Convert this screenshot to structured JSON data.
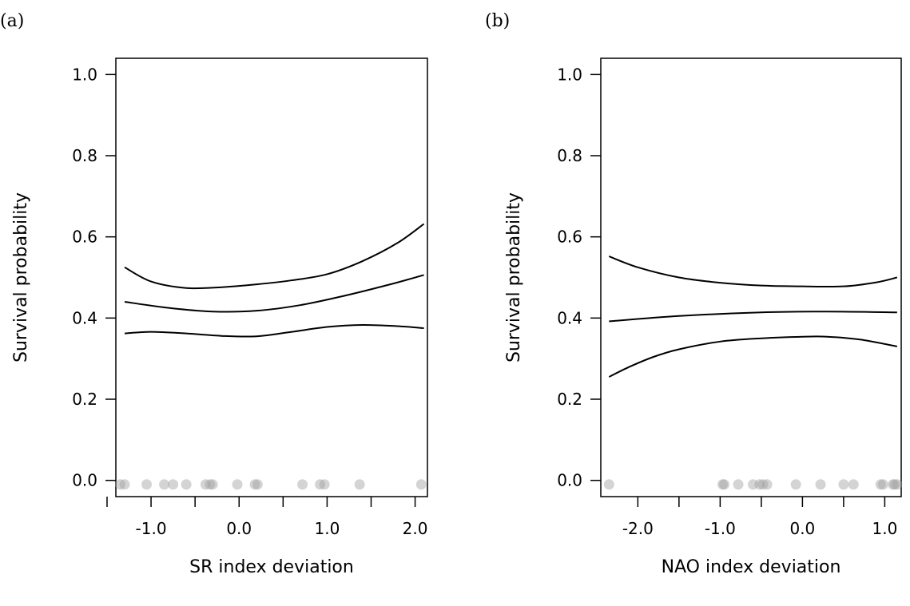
{
  "chart_data": [
    {
      "type": "line",
      "panel_label": "(a)",
      "xlabel": "SR index deviation",
      "ylabel": "Survival probability",
      "xlim": [
        -1.4,
        2.14
      ],
      "ylim": [
        -0.04,
        1.04
      ],
      "x_ticks": [
        -1.5,
        -1.0,
        -0.5,
        0.0,
        0.5,
        1.0,
        1.5,
        2.0
      ],
      "x_tick_labels": [
        {
          "value": -1.0,
          "text": "-1.0"
        },
        {
          "value": 0.0,
          "text": "0.0"
        },
        {
          "value": 1.0,
          "text": "1.0"
        },
        {
          "value": 2.0,
          "text": "2.0"
        }
      ],
      "y_ticks": [
        {
          "value": 0.0,
          "text": "0.0"
        },
        {
          "value": 0.2,
          "text": "0.2"
        },
        {
          "value": 0.4,
          "text": "0.4"
        },
        {
          "value": 0.6,
          "text": "0.6"
        },
        {
          "value": 0.8,
          "text": "0.8"
        },
        {
          "value": 1.0,
          "text": "1.0"
        }
      ],
      "grid": false,
      "series": [
        {
          "role": "upper",
          "x": [
            -1.3,
            -1.0,
            -0.6,
            -0.2,
            0.2,
            0.6,
            1.0,
            1.4,
            1.8,
            2.1
          ],
          "y": [
            0.525,
            0.49,
            0.474,
            0.476,
            0.483,
            0.493,
            0.508,
            0.54,
            0.585,
            0.632
          ]
        },
        {
          "role": "mean",
          "x": [
            -1.3,
            -0.8,
            -0.3,
            0.2,
            0.7,
            1.2,
            1.7,
            2.1
          ],
          "y": [
            0.44,
            0.425,
            0.416,
            0.418,
            0.432,
            0.455,
            0.482,
            0.506
          ]
        },
        {
          "role": "lower",
          "x": [
            -1.3,
            -1.0,
            -0.6,
            -0.2,
            0.2,
            0.6,
            1.0,
            1.4,
            1.8,
            2.1
          ],
          "y": [
            0.362,
            0.366,
            0.362,
            0.356,
            0.355,
            0.366,
            0.378,
            0.383,
            0.38,
            0.375
          ]
        }
      ],
      "points": {
        "y": -0.01,
        "x": [
          -1.35,
          -1.3,
          -1.05,
          -0.85,
          -0.75,
          -0.6,
          -0.38,
          -0.33,
          -0.3,
          -0.02,
          0.18,
          0.21,
          0.72,
          0.92,
          0.97,
          1.37,
          2.07
        ]
      }
    },
    {
      "type": "line",
      "panel_label": "(b)",
      "xlabel": "NAO index deviation",
      "ylabel": "Survival probability",
      "xlim": [
        -2.45,
        1.2
      ],
      "ylim": [
        -0.04,
        1.04
      ],
      "x_ticks": [
        -2.0,
        -1.5,
        -1.0,
        -0.5,
        0.0,
        0.5,
        1.0
      ],
      "x_tick_labels": [
        {
          "value": -2.0,
          "text": "-2.0"
        },
        {
          "value": -1.0,
          "text": "-1.0"
        },
        {
          "value": 0.0,
          "text": "0.0"
        },
        {
          "value": 1.0,
          "text": "1.0"
        }
      ],
      "y_ticks": [
        {
          "value": 0.0,
          "text": "0.0"
        },
        {
          "value": 0.2,
          "text": "0.2"
        },
        {
          "value": 0.4,
          "text": "0.4"
        },
        {
          "value": 0.6,
          "text": "0.6"
        },
        {
          "value": 0.8,
          "text": "0.8"
        },
        {
          "value": 1.0,
          "text": "1.0"
        }
      ],
      "grid": false,
      "series": [
        {
          "role": "upper",
          "x": [
            -2.35,
            -2.0,
            -1.5,
            -1.0,
            -0.5,
            0.0,
            0.5,
            0.9,
            1.15
          ],
          "y": [
            0.552,
            0.525,
            0.5,
            0.487,
            0.48,
            0.478,
            0.478,
            0.488,
            0.5
          ]
        },
        {
          "role": "mean",
          "x": [
            -2.35,
            -1.5,
            -0.5,
            0.3,
            1.15
          ],
          "y": [
            0.392,
            0.405,
            0.414,
            0.416,
            0.414
          ]
        },
        {
          "role": "lower",
          "x": [
            -2.35,
            -2.1,
            -1.8,
            -1.5,
            -1.0,
            -0.5,
            0.0,
            0.3,
            0.7,
            1.15
          ],
          "y": [
            0.255,
            0.28,
            0.305,
            0.323,
            0.342,
            0.35,
            0.354,
            0.354,
            0.347,
            0.33
          ]
        }
      ],
      "points": {
        "y": -0.01,
        "x": [
          -2.35,
          -0.97,
          -0.95,
          -0.78,
          -0.6,
          -0.52,
          -0.48,
          -0.43,
          -0.08,
          0.22,
          0.5,
          0.62,
          0.95,
          0.98,
          1.1,
          1.12,
          1.15
        ]
      }
    }
  ]
}
